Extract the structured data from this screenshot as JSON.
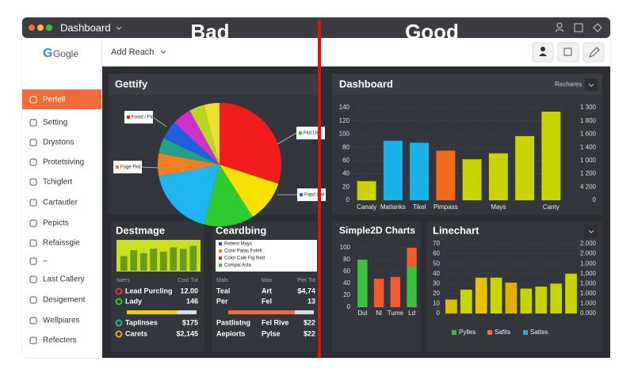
{
  "window": {
    "title": "Dashboard"
  },
  "overlay": {
    "bad": "Bad",
    "good": "Good"
  },
  "sidebar": {
    "logo": "Gogle",
    "active": 0,
    "items": [
      "Perfell",
      "Setting",
      "Drystons",
      "Protetsiving",
      "Tchiglert",
      "Cartautler",
      "Pepicts",
      "Refaissgie",
      "–",
      "Last Callery",
      "Desigement",
      "Wellpiares",
      "Refecters"
    ]
  },
  "header": {
    "button": "Add Reach"
  },
  "panels": {
    "gettify": {
      "title": "Gettify",
      "chart": {
        "type": "pie",
        "values": [
          30,
          11,
          13,
          18,
          6,
          4,
          5,
          5,
          4,
          4
        ],
        "colors": [
          "#f21c1c",
          "#f5e000",
          "#2ecc2e",
          "#1fb5f0",
          "#f08020",
          "#21a08a",
          "#2060e0",
          "#d030c8",
          "#b8d820",
          "#f0e030"
        ]
      },
      "callouts": [
        "Fosid / Fkb",
        "Fkd Lbd",
        "Foge Fkd",
        "Fopd Lbd"
      ]
    },
    "dashboard": {
      "title": "Dashboard",
      "control": "Rechares",
      "chart": {
        "type": "bar",
        "values": [
          29,
          90,
          87,
          75,
          62,
          71,
          97,
          134
        ],
        "colors": [
          "#c8d400",
          "#1ab0e8",
          "#1ab0e8",
          "#f26b1d",
          "#c8d400",
          "#c8d400",
          "#c8d400",
          "#c8d400"
        ],
        "categories": [
          "Canaly",
          "Matlanks",
          "Tikel",
          "Pimpass",
          null,
          "Mays",
          null,
          "Canty"
        ],
        "ylim": [
          0,
          140
        ],
        "yticks": [
          0,
          20,
          40,
          60,
          80,
          100,
          120,
          140
        ],
        "grid": true,
        "right_labels": [
          "1 300",
          "1 800",
          "1 600",
          "1 400",
          "1 000",
          "1 200",
          "4 200",
          "0"
        ]
      }
    },
    "destmage": {
      "title": "Destmage",
      "chart": {
        "type": "bar",
        "values": [
          20,
          28,
          24,
          30,
          26,
          32,
          30,
          34
        ],
        "color": "#6c9a1a",
        "ylim": [
          0,
          40
        ]
      },
      "table": {
        "header": [
          "Iwers",
          "Cost Tut"
        ],
        "rows": [
          [
            "Lead Purcling",
            "12.00"
          ],
          [
            "Lady",
            "146"
          ],
          [
            "Taplinses",
            "$175"
          ],
          [
            "Carets",
            "$2,145"
          ]
        ],
        "progress": 72
      }
    },
    "ceardbing": {
      "title": "Ceardbing",
      "legend": [
        "Rebest Mays",
        "Cose Patas Fofelt",
        "Color Cale Fig Red",
        "Compal Asla"
      ],
      "table": {
        "header": [
          "Mals",
          "Mas",
          "Piel Tot"
        ],
        "rows": [
          [
            "Teal",
            "Art",
            "$4,74"
          ],
          [
            "Per",
            "Fel",
            "13"
          ],
          [
            "Pastlistng",
            "Fel Rive",
            "$22"
          ],
          [
            "Aepiorts",
            "Pylse",
            "$22"
          ]
        ],
        "progress": 78
      }
    },
    "simple": {
      "title": "Simple2D Charts",
      "chart": {
        "type": "bar",
        "stacked": true,
        "categories": [
          "Dul",
          "Nl",
          "Tume",
          "Ld"
        ],
        "series": [
          {
            "color": "#3fbf3f",
            "values": [
              80,
              null,
              null,
              68
            ]
          },
          {
            "color": "#f25a30",
            "values": [
              null,
              48,
              51,
              32
            ]
          }
        ],
        "ylim": [
          0,
          100
        ],
        "yticks": [
          0,
          20,
          40,
          60,
          80,
          100
        ],
        "grid": true
      }
    },
    "linechart": {
      "title": "Linechart",
      "chart": {
        "type": "bar",
        "values": [
          14,
          24,
          36,
          36,
          31,
          25,
          27,
          30,
          40
        ],
        "colors": [
          "#d4c400",
          "#c8d400",
          "#e6c200",
          "#c8d400",
          "#e0b000",
          "#c8d400",
          "#c8d400",
          "#c8d400",
          "#c8d400"
        ],
        "ylim": [
          0,
          70
        ],
        "yticks": [
          0,
          10,
          20,
          30,
          40,
          50,
          60,
          70
        ],
        "grid": true,
        "right_labels": [
          "2.000",
          "2.000",
          "1.000",
          "1,000",
          "1.000",
          "1.000",
          "1.000",
          "0.000"
        ],
        "legend": [
          {
            "name": "Pylles",
            "color": "#3fbf3f"
          },
          {
            "name": "Safits",
            "color": "#f26b3a"
          },
          {
            "name": "Sattes",
            "color": "#1fa8e0"
          }
        ]
      }
    }
  }
}
